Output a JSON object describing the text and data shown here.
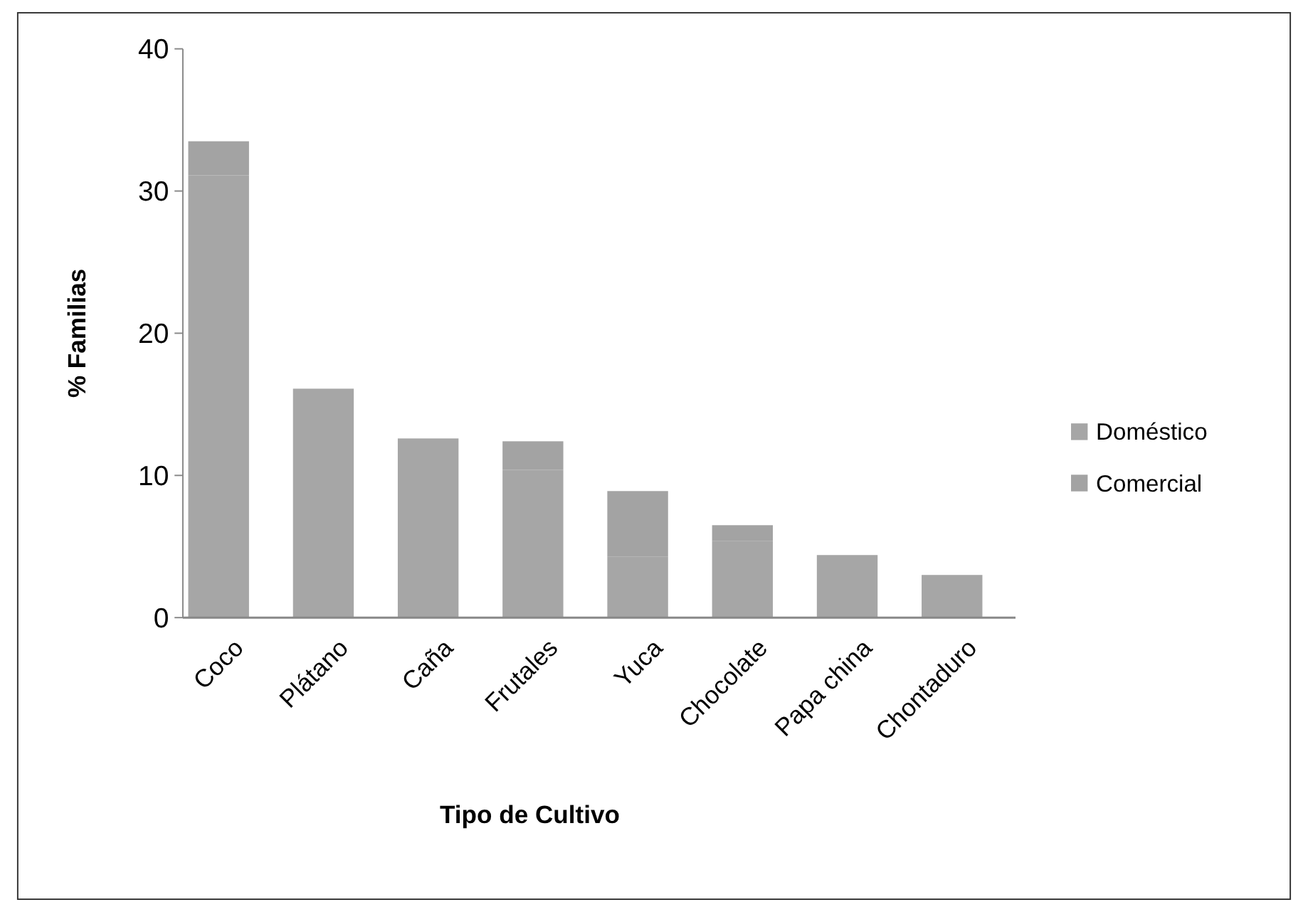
{
  "chart_data": {
    "type": "bar",
    "stacked": true,
    "xlabel": "Tipo de Cultivo",
    "ylabel": "% Familias",
    "categories": [
      "Coco",
      "Plátano",
      "Caña",
      "Frutales",
      "Yuca",
      "Chocolate",
      "Papa china",
      "Chontaduro"
    ],
    "series": [
      {
        "name": "Doméstico",
        "color": "#a6a6a6",
        "values": [
          31.1,
          16.1,
          12.6,
          10.4,
          4.3,
          5.4,
          4.4,
          3.0
        ]
      },
      {
        "name": "Comercial",
        "color": "#a3a3a3",
        "values": [
          2.4,
          0,
          0,
          2.0,
          4.6,
          1.1,
          0,
          0
        ]
      }
    ],
    "ylim": [
      0,
      40
    ],
    "yticks": [
      0,
      10,
      20,
      30,
      40
    ],
    "grid": false,
    "legend": "right"
  }
}
